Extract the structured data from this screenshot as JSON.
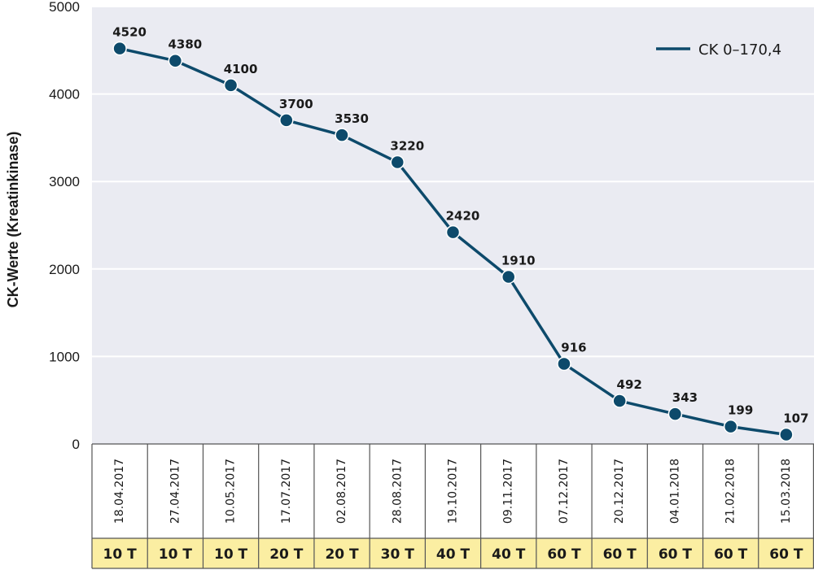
{
  "chart_data": {
    "type": "line",
    "ylabel": "CK-Werte (Kreatinkinase)",
    "xlabel": "",
    "title": "",
    "ylim": [
      0,
      5000
    ],
    "yticks": [
      0,
      1000,
      2000,
      3000,
      4000,
      5000
    ],
    "grid": true,
    "legend_position": "top-right",
    "categories": [
      "18.04.2017",
      "27.04.2017",
      "10.05.2017",
      "17.07.2017",
      "02.08.2017",
      "28.08.2017",
      "19.10.2017",
      "09.11.2017",
      "07.12.2017",
      "20.12.2017",
      "04.01.2018",
      "21.02.2018",
      "15.03.2018"
    ],
    "doses": [
      "10 T",
      "10 T",
      "10 T",
      "20 T",
      "20 T",
      "30 T",
      "40 T",
      "40 T",
      "60 T",
      "60 T",
      "60 T",
      "60 T",
      "60 T"
    ],
    "series": [
      {
        "name": "CK 0–170,4",
        "values": [
          4520,
          4380,
          4100,
          3700,
          3530,
          3220,
          2420,
          1910,
          916,
          492,
          343,
          199,
          107
        ],
        "labels": [
          "4520",
          "4380",
          "4100",
          "3700",
          "3530",
          "3220",
          "2420",
          "1910",
          "916",
          "492",
          "343",
          "199",
          "107"
        ]
      }
    ],
    "colors": {
      "plot_background": "#eaebf2",
      "line": "#0d4a6b",
      "dose_row": "#fbeea2",
      "grid": "#ffffff",
      "cell_border": "#555555"
    }
  }
}
